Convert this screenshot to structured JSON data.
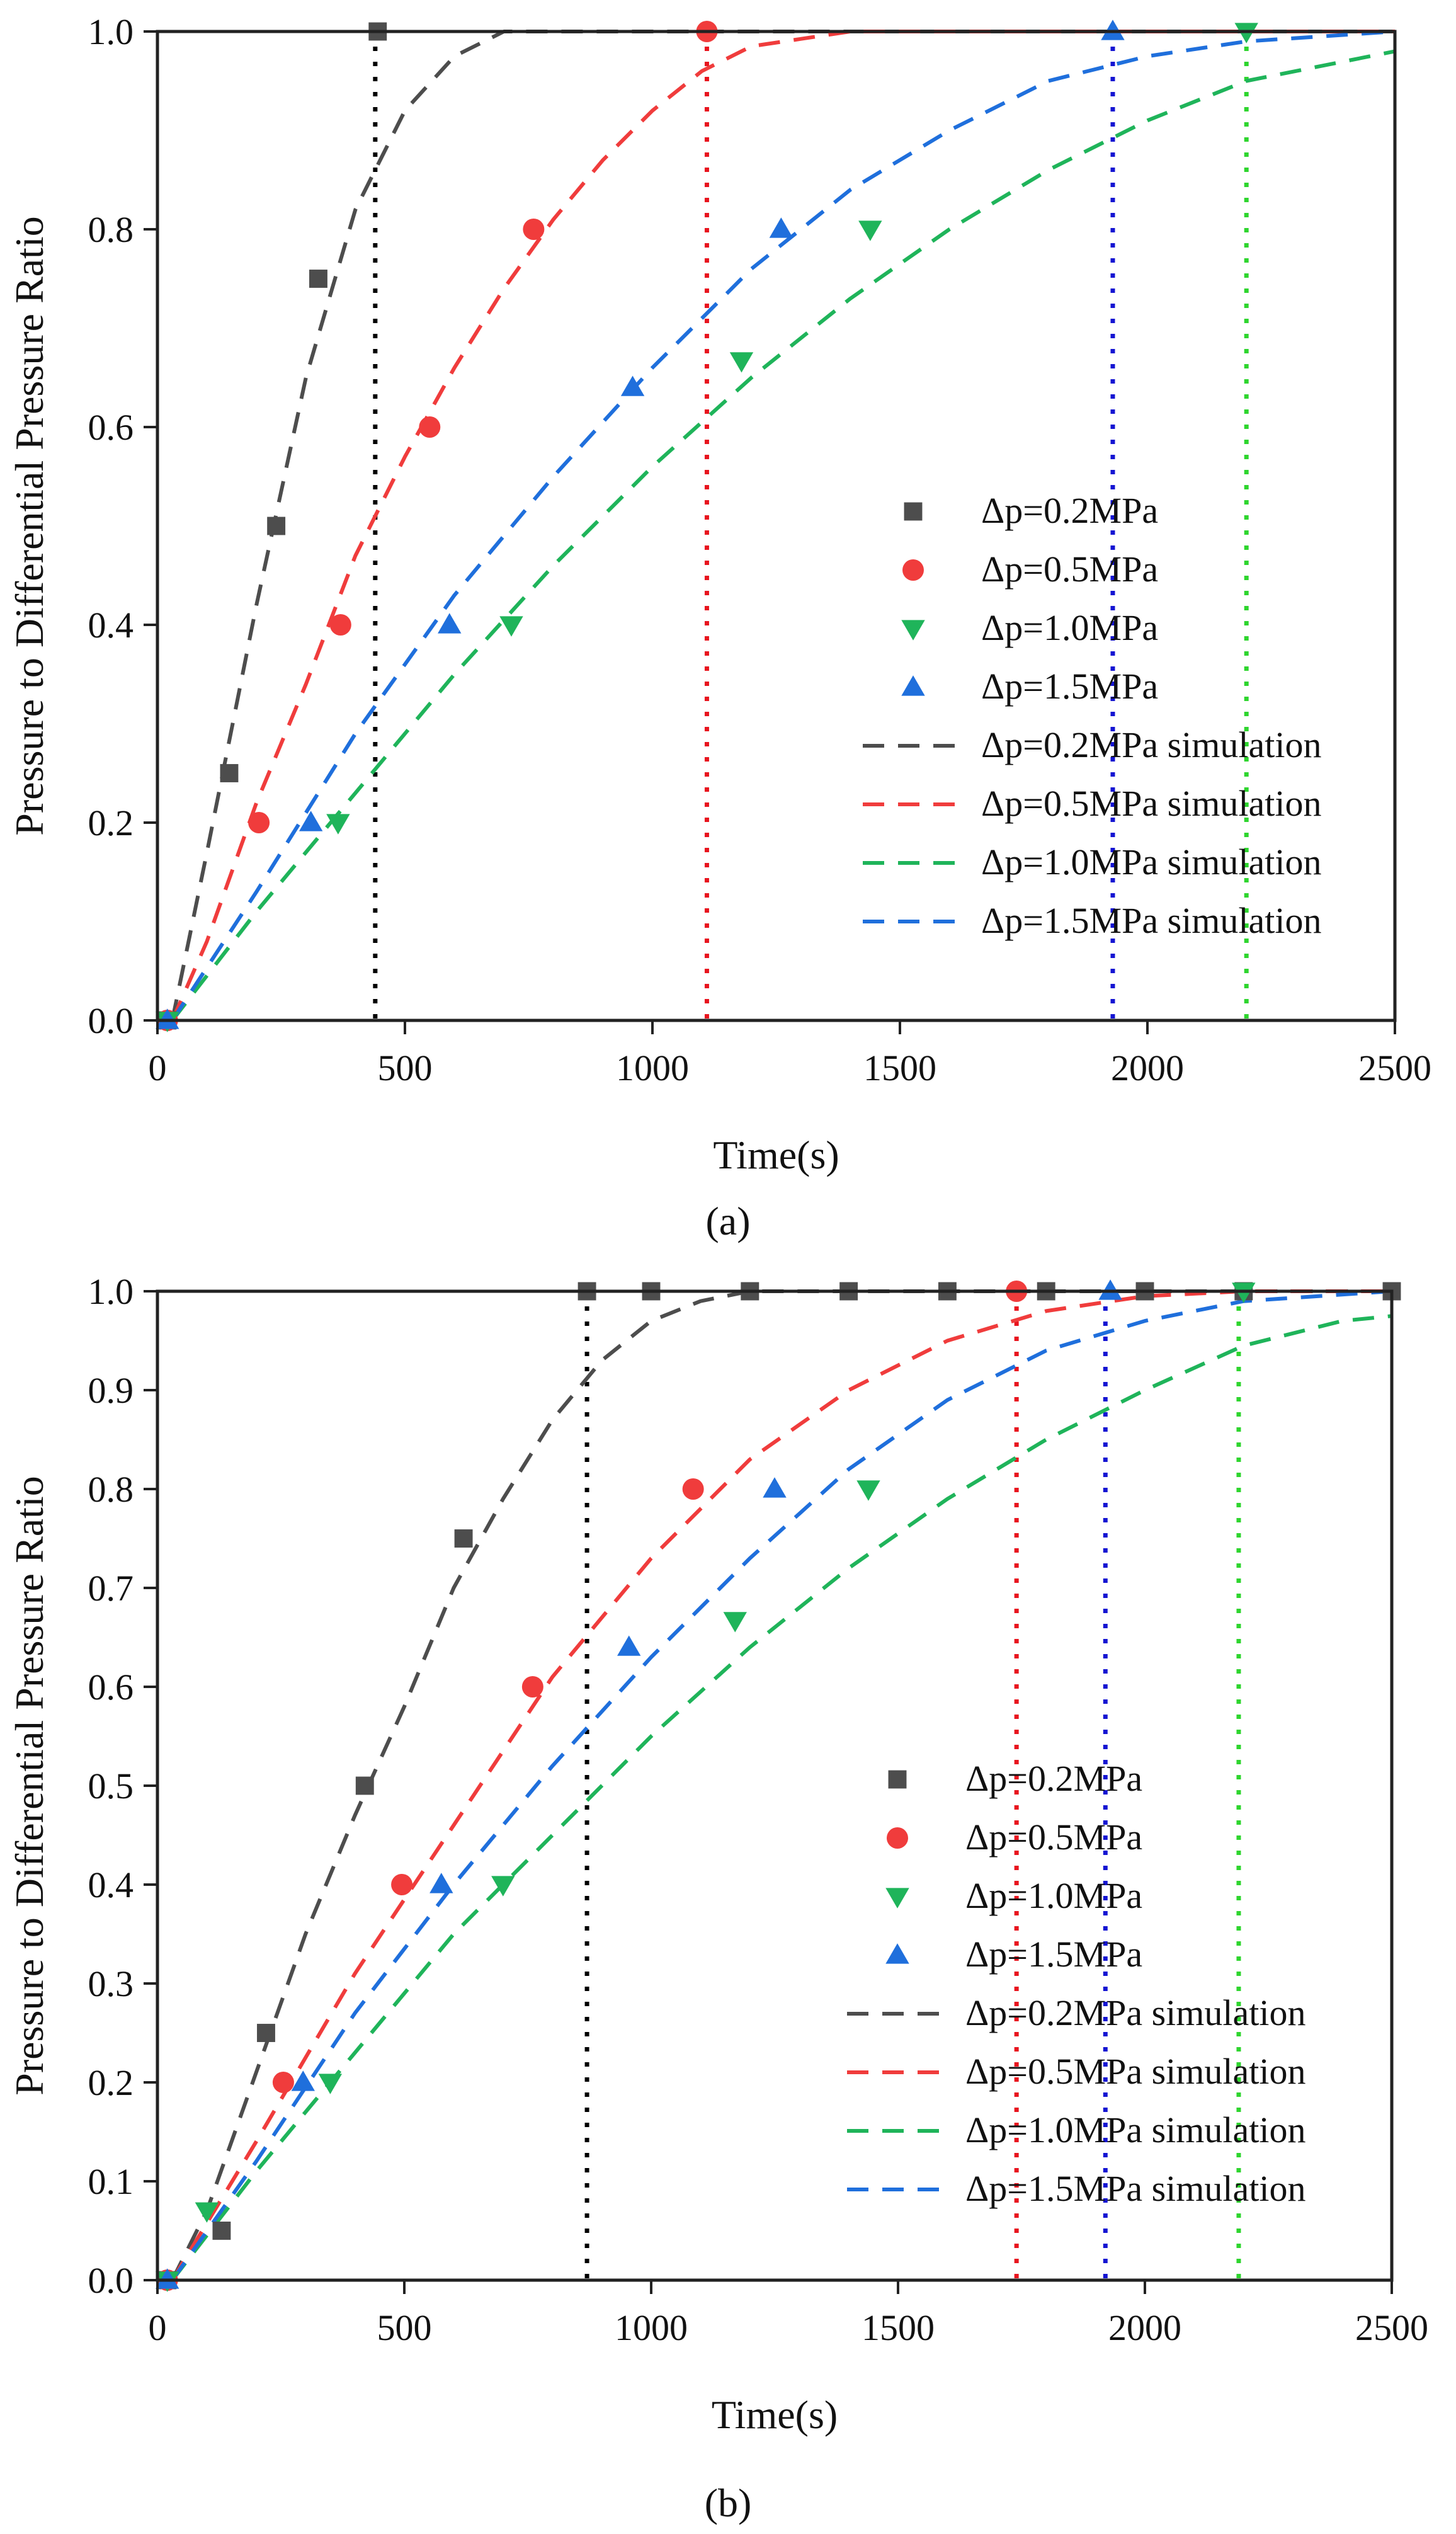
{
  "figure": {
    "panels": [
      "(a)",
      "(b)"
    ]
  },
  "chart_data": [
    {
      "panel": "(a)",
      "type": "scatter",
      "title": "",
      "xlabel": "Time(s)",
      "ylabel": "Pressure to Differential Pressure Ratio",
      "xlim": [
        0,
        2500
      ],
      "ylim": [
        0,
        1.0
      ],
      "xticks": [
        0,
        500,
        1000,
        1500,
        2000,
        2500
      ],
      "yticks": [
        0.0,
        0.2,
        0.4,
        0.6,
        0.8,
        1.0
      ],
      "tick_decimals": 1,
      "legend_position": "center-right",
      "series": [
        {
          "name": "Δp=0.2MPa",
          "kind": "marker",
          "marker": "square",
          "color": "#4d4d4d",
          "points": [
            [
              20,
              0
            ],
            [
              145,
              0.25
            ],
            [
              240,
              0.5
            ],
            [
              325,
              0.75
            ],
            [
              445,
              1.0
            ]
          ]
        },
        {
          "name": "Δp=0.5MPa",
          "kind": "marker",
          "marker": "circle",
          "color": "#f03c3c",
          "points": [
            [
              20,
              0
            ],
            [
              205,
              0.2
            ],
            [
              370,
              0.4
            ],
            [
              550,
              0.6
            ],
            [
              760,
              0.8
            ],
            [
              1110,
              1.0
            ]
          ]
        },
        {
          "name": "Δp=1.0MPa",
          "kind": "marker",
          "marker": "triangle-down",
          "color": "#1fb45a",
          "points": [
            [
              20,
              0
            ],
            [
              365,
              0.2
            ],
            [
              715,
              0.4
            ],
            [
              1180,
              0.667
            ],
            [
              1440,
              0.8
            ],
            [
              2200,
              1.0
            ]
          ]
        },
        {
          "name": "Δp=1.5MPa",
          "kind": "marker",
          "marker": "triangle-up",
          "color": "#1f6fdc",
          "points": [
            [
              20,
              0
            ],
            [
              310,
              0.2
            ],
            [
              590,
              0.4
            ],
            [
              960,
              0.64
            ],
            [
              1260,
              0.8
            ],
            [
              1930,
              1.0
            ]
          ]
        },
        {
          "name": "Δp=0.2MPa simulation",
          "kind": "dashed",
          "color": "#4d4d4d",
          "points": [
            [
              30,
              0
            ],
            [
              100,
              0.17
            ],
            [
              200,
              0.42
            ],
            [
              300,
              0.65
            ],
            [
              400,
              0.82
            ],
            [
              500,
              0.92
            ],
            [
              600,
              0.975
            ],
            [
              700,
              1.0
            ],
            [
              2500,
              1.0
            ]
          ]
        },
        {
          "name": "Δp=0.5MPa simulation",
          "kind": "dashed",
          "color": "#f03c3c",
          "points": [
            [
              30,
              0
            ],
            [
              100,
              0.08
            ],
            [
              200,
              0.22
            ],
            [
              300,
              0.34
            ],
            [
              400,
              0.47
            ],
            [
              500,
              0.57
            ],
            [
              600,
              0.66
            ],
            [
              700,
              0.74
            ],
            [
              800,
              0.81
            ],
            [
              900,
              0.87
            ],
            [
              1000,
              0.92
            ],
            [
              1100,
              0.96
            ],
            [
              1200,
              0.985
            ],
            [
              1400,
              1.0
            ],
            [
              2500,
              1.0
            ]
          ]
        },
        {
          "name": "Δp=1.0MPa simulation",
          "kind": "dashed",
          "color": "#1fb45a",
          "points": [
            [
              30,
              0
            ],
            [
              200,
              0.11
            ],
            [
              400,
              0.23
            ],
            [
              600,
              0.35
            ],
            [
              800,
              0.46
            ],
            [
              1000,
              0.56
            ],
            [
              1200,
              0.65
            ],
            [
              1400,
              0.73
            ],
            [
              1600,
              0.8
            ],
            [
              1800,
              0.86
            ],
            [
              2000,
              0.91
            ],
            [
              2200,
              0.95
            ],
            [
              2400,
              0.97
            ],
            [
              2500,
              0.98
            ]
          ]
        },
        {
          "name": "Δp=1.5MPa simulation",
          "kind": "dashed",
          "color": "#1f6fdc",
          "points": [
            [
              30,
              0
            ],
            [
              200,
              0.13
            ],
            [
              400,
              0.29
            ],
            [
              600,
              0.43
            ],
            [
              800,
              0.55
            ],
            [
              1000,
              0.66
            ],
            [
              1200,
              0.76
            ],
            [
              1400,
              0.84
            ],
            [
              1600,
              0.9
            ],
            [
              1800,
              0.95
            ],
            [
              2000,
              0.975
            ],
            [
              2200,
              0.99
            ],
            [
              2500,
              1.0
            ]
          ]
        }
      ],
      "vlines": [
        {
          "x": 440,
          "color": "#000000"
        },
        {
          "x": 1110,
          "color": "#e8141e"
        },
        {
          "x": 1930,
          "color": "#1414d2"
        },
        {
          "x": 2200,
          "color": "#2ed52e"
        }
      ]
    },
    {
      "panel": "(b)",
      "type": "scatter",
      "title": "",
      "xlabel": "Time(s)",
      "ylabel": "Pressure to Differential Pressure Ratio",
      "xlim": [
        0,
        2500
      ],
      "ylim": [
        0,
        1.0
      ],
      "xticks": [
        0,
        500,
        1000,
        1500,
        2000,
        2500
      ],
      "yticks": [
        0.0,
        0.1,
        0.2,
        0.3,
        0.4,
        0.5,
        0.6,
        0.7,
        0.8,
        0.9,
        1.0
      ],
      "tick_decimals": 1,
      "legend_position": "center-right",
      "series": [
        {
          "name": "Δp=0.2MPa",
          "kind": "marker",
          "marker": "square",
          "color": "#4d4d4d",
          "points": [
            [
              20,
              0
            ],
            [
              130,
              0.05
            ],
            [
              220,
              0.25
            ],
            [
              420,
              0.5
            ],
            [
              620,
              0.75
            ],
            [
              870,
              1.0
            ],
            [
              1000,
              1.0
            ],
            [
              1200,
              1.0
            ],
            [
              1400,
              1.0
            ],
            [
              1600,
              1.0
            ],
            [
              1800,
              1.0
            ],
            [
              2000,
              1.0
            ],
            [
              2200,
              1.0
            ],
            [
              2500,
              1.0
            ]
          ]
        },
        {
          "name": "Δp=0.5MPa",
          "kind": "marker",
          "marker": "circle",
          "color": "#f03c3c",
          "points": [
            [
              20,
              0
            ],
            [
              255,
              0.2
            ],
            [
              495,
              0.4
            ],
            [
              760,
              0.6
            ],
            [
              1085,
              0.8
            ],
            [
              1740,
              1.0
            ]
          ]
        },
        {
          "name": "Δp=1.0MPa",
          "kind": "marker",
          "marker": "triangle-down",
          "color": "#1fb45a",
          "points": [
            [
              20,
              0
            ],
            [
              100,
              0.07
            ],
            [
              350,
              0.2
            ],
            [
              700,
              0.4
            ],
            [
              1170,
              0.667
            ],
            [
              1440,
              0.8
            ],
            [
              2200,
              1.0
            ]
          ]
        },
        {
          "name": "Δp=1.5MPa",
          "kind": "marker",
          "marker": "triangle-up",
          "color": "#1f6fdc",
          "points": [
            [
              20,
              0
            ],
            [
              295,
              0.2
            ],
            [
              575,
              0.4
            ],
            [
              955,
              0.64
            ],
            [
              1250,
              0.8
            ],
            [
              1930,
              1.0
            ]
          ]
        },
        {
          "name": "Δp=0.2MPa simulation",
          "kind": "dashed",
          "color": "#4d4d4d",
          "points": [
            [
              30,
              0
            ],
            [
              100,
              0.07
            ],
            [
              200,
              0.21
            ],
            [
              300,
              0.35
            ],
            [
              400,
              0.47
            ],
            [
              500,
              0.58
            ],
            [
              600,
              0.7
            ],
            [
              700,
              0.79
            ],
            [
              800,
              0.87
            ],
            [
              900,
              0.93
            ],
            [
              1000,
              0.97
            ],
            [
              1100,
              0.99
            ],
            [
              1200,
              1.0
            ],
            [
              2500,
              1.0
            ]
          ]
        },
        {
          "name": "Δp=0.5MPa simulation",
          "kind": "dashed",
          "color": "#f03c3c",
          "points": [
            [
              30,
              0
            ],
            [
              200,
              0.14
            ],
            [
              400,
              0.31
            ],
            [
              600,
              0.46
            ],
            [
              800,
              0.61
            ],
            [
              1000,
              0.73
            ],
            [
              1200,
              0.83
            ],
            [
              1400,
              0.9
            ],
            [
              1600,
              0.95
            ],
            [
              1800,
              0.98
            ],
            [
              2000,
              0.995
            ],
            [
              2200,
              1.0
            ],
            [
              2500,
              1.0
            ]
          ]
        },
        {
          "name": "Δp=1.0MPa simulation",
          "kind": "dashed",
          "color": "#1fb45a",
          "points": [
            [
              30,
              0
            ],
            [
              200,
              0.11
            ],
            [
              400,
              0.23
            ],
            [
              600,
              0.35
            ],
            [
              800,
              0.45
            ],
            [
              1000,
              0.55
            ],
            [
              1200,
              0.64
            ],
            [
              1400,
              0.72
            ],
            [
              1600,
              0.79
            ],
            [
              1800,
              0.85
            ],
            [
              2000,
              0.9
            ],
            [
              2200,
              0.945
            ],
            [
              2400,
              0.97
            ],
            [
              2500,
              0.975
            ]
          ]
        },
        {
          "name": "Δp=1.5MPa simulation",
          "kind": "dashed",
          "color": "#1f6fdc",
          "points": [
            [
              30,
              0
            ],
            [
              200,
              0.12
            ],
            [
              400,
              0.27
            ],
            [
              600,
              0.4
            ],
            [
              800,
              0.52
            ],
            [
              1000,
              0.63
            ],
            [
              1200,
              0.73
            ],
            [
              1400,
              0.82
            ],
            [
              1600,
              0.89
            ],
            [
              1800,
              0.94
            ],
            [
              2000,
              0.97
            ],
            [
              2200,
              0.99
            ],
            [
              2500,
              1.0
            ]
          ]
        }
      ],
      "vlines": [
        {
          "x": 870,
          "color": "#000000"
        },
        {
          "x": 1740,
          "color": "#e8141e"
        },
        {
          "x": 1920,
          "color": "#1414d2"
        },
        {
          "x": 2190,
          "color": "#2ed52e"
        }
      ]
    }
  ]
}
